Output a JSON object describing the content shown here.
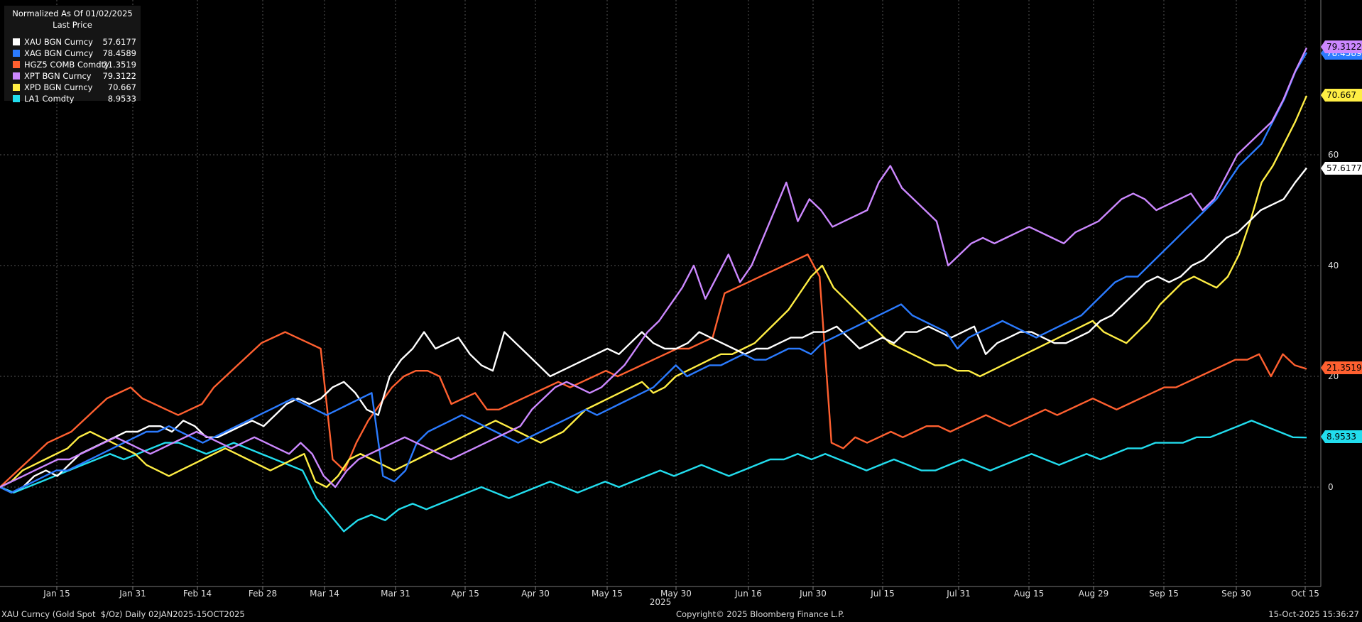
{
  "legend": {
    "header_line1": "Normalized As Of 01/02/2025",
    "header_line2": "Last Price",
    "items": [
      {
        "name": "XAU BGN Curncy",
        "value": "57.6177",
        "color": "#ffffff"
      },
      {
        "name": "XAG BGN Curncy",
        "value": "78.4589",
        "color": "#2b7bff"
      },
      {
        "name": "HGZ5 COMB Comdty",
        "value": "21.3519",
        "color": "#ff6030"
      },
      {
        "name": "XPT BGN Curncy",
        "value": "79.3122",
        "color": "#cc88ff"
      },
      {
        "name": "XPD BGN Curncy",
        "value": "70.667",
        "color": "#ffee44"
      },
      {
        "name": "LA1 Comdty",
        "value": "8.9533",
        "color": "#22ddee"
      }
    ]
  },
  "footer": {
    "left": "XAU Curncy (Gold Spot  $/Oz) Daily 02JAN2025-15OCT2025",
    "center": "Copyright© 2025 Bloomberg Finance L.P.",
    "right": "15-Oct-2025 15:36:27"
  },
  "chart_data": {
    "type": "line",
    "x_labels": [
      "Jan 15",
      "Jan 31",
      "Feb 14",
      "Feb 28",
      "Mar 14",
      "Mar 31",
      "Apr 15",
      "Apr 30",
      "May 15",
      "May 30",
      "Jun 16",
      "Jun 30",
      "Jul 15",
      "Jul 31",
      "Aug 15",
      "Aug 29",
      "Sep 15",
      "Sep 30",
      "Oct 15"
    ],
    "x_year_label": "2025",
    "y_ticks": [
      0,
      20,
      40,
      60
    ],
    "ylim": [
      -18,
      80
    ],
    "grid": true,
    "series": [
      {
        "name": "XAU BGN Curncy",
        "color": "#ffffff",
        "last": "57.6177",
        "values": [
          0,
          -1,
          0,
          2,
          3,
          2,
          4,
          6,
          7,
          8,
          9,
          10,
          10,
          11,
          11,
          10,
          12,
          11,
          9,
          9,
          10,
          11,
          12,
          11,
          13,
          15,
          16,
          15,
          16,
          18,
          19,
          17,
          14,
          13,
          20,
          23,
          25,
          28,
          25,
          26,
          27,
          24,
          22,
          21,
          28,
          26,
          24,
          22,
          20,
          21,
          22,
          23,
          24,
          25,
          24,
          26,
          28,
          26,
          25,
          25,
          26,
          28,
          27,
          26,
          25,
          24,
          25,
          25,
          26,
          27,
          27,
          28,
          28,
          29,
          27,
          25,
          26,
          27,
          26,
          28,
          28,
          29,
          28,
          27,
          28,
          29,
          24,
          26,
          27,
          28,
          28,
          27,
          26,
          26,
          27,
          28,
          30,
          31,
          33,
          35,
          37,
          38,
          37,
          38,
          40,
          41,
          43,
          45,
          46,
          48,
          50,
          51,
          52,
          55,
          57.6177
        ]
      },
      {
        "name": "XAG BGN Curncy",
        "color": "#2b7bff",
        "last": "78.4589",
        "values": [
          0,
          -1,
          0,
          1,
          2,
          3,
          3,
          4,
          5,
          6,
          7,
          8,
          9,
          10,
          10,
          11,
          10,
          9,
          8,
          9,
          10,
          11,
          12,
          13,
          14,
          15,
          16,
          15,
          14,
          13,
          14,
          15,
          16,
          17,
          2,
          1,
          3,
          8,
          10,
          11,
          12,
          13,
          12,
          11,
          10,
          9,
          8,
          9,
          10,
          11,
          12,
          13,
          14,
          13,
          14,
          15,
          16,
          17,
          18,
          20,
          22,
          20,
          21,
          22,
          22,
          23,
          24,
          23,
          23,
          24,
          25,
          25,
          24,
          26,
          27,
          28,
          29,
          30,
          31,
          32,
          33,
          31,
          30,
          29,
          28,
          25,
          27,
          28,
          29,
          30,
          29,
          28,
          27,
          28,
          29,
          30,
          31,
          33,
          35,
          37,
          38,
          38,
          40,
          42,
          44,
          46,
          48,
          50,
          52,
          55,
          58,
          60,
          62,
          66,
          70,
          75,
          78.4589
        ]
      },
      {
        "name": "HGZ5 COMB Comdty",
        "color": "#ff6030",
        "last": "21.3519",
        "values": [
          0,
          2,
          4,
          6,
          8,
          9,
          10,
          12,
          14,
          16,
          17,
          18,
          16,
          15,
          14,
          13,
          14,
          15,
          18,
          20,
          22,
          24,
          26,
          27,
          28,
          27,
          26,
          25,
          5,
          3,
          8,
          12,
          15,
          18,
          20,
          21,
          21,
          20,
          15,
          16,
          17,
          14,
          14,
          15,
          16,
          17,
          18,
          19,
          18,
          19,
          20,
          21,
          20,
          21,
          22,
          23,
          24,
          25,
          25,
          26,
          27,
          35,
          36,
          37,
          38,
          39,
          40,
          41,
          42,
          38,
          8,
          7,
          9,
          8,
          9,
          10,
          9,
          10,
          11,
          11,
          10,
          11,
          12,
          13,
          12,
          11,
          12,
          13,
          14,
          13,
          14,
          15,
          16,
          15,
          14,
          15,
          16,
          17,
          18,
          18,
          19,
          20,
          21,
          22,
          23,
          23,
          24,
          20,
          24,
          22,
          21.3519
        ]
      },
      {
        "name": "XPT BGN Curncy",
        "color": "#cc88ff",
        "last": "79.3122",
        "values": [
          0,
          1,
          2,
          3,
          4,
          5,
          5,
          6,
          7,
          8,
          9,
          8,
          7,
          6,
          7,
          8,
          9,
          10,
          9,
          8,
          7,
          8,
          9,
          8,
          7,
          6,
          8,
          6,
          2,
          0,
          3,
          5,
          6,
          7,
          8,
          9,
          8,
          7,
          6,
          5,
          6,
          7,
          8,
          9,
          10,
          11,
          14,
          16,
          18,
          19,
          18,
          17,
          18,
          20,
          22,
          25,
          28,
          30,
          33,
          36,
          40,
          34,
          38,
          42,
          37,
          40,
          45,
          50,
          55,
          48,
          52,
          50,
          47,
          48,
          49,
          50,
          55,
          58,
          54,
          52,
          50,
          48,
          40,
          42,
          44,
          45,
          44,
          45,
          46,
          47,
          46,
          45,
          44,
          46,
          47,
          48,
          50,
          52,
          53,
          52,
          50,
          51,
          52,
          53,
          50,
          52,
          56,
          60,
          62,
          64,
          66,
          70,
          75,
          79.3122
        ]
      },
      {
        "name": "XPD BGN Curncy",
        "color": "#ffee44",
        "last": "70.667",
        "values": [
          0,
          1,
          3,
          4,
          5,
          6,
          7,
          9,
          10,
          9,
          8,
          7,
          6,
          4,
          3,
          2,
          3,
          4,
          5,
          6,
          7,
          6,
          5,
          4,
          3,
          4,
          5,
          6,
          1,
          0,
          2,
          5,
          6,
          5,
          4,
          3,
          4,
          5,
          6,
          7,
          8,
          9,
          10,
          11,
          12,
          11,
          10,
          9,
          8,
          9,
          10,
          12,
          14,
          15,
          16,
          17,
          18,
          19,
          17,
          18,
          20,
          21,
          22,
          23,
          24,
          24,
          25,
          26,
          28,
          30,
          32,
          35,
          38,
          40,
          36,
          34,
          32,
          30,
          28,
          26,
          25,
          24,
          23,
          22,
          22,
          21,
          21,
          20,
          21,
          22,
          23,
          24,
          25,
          26,
          27,
          28,
          29,
          30,
          28,
          27,
          26,
          28,
          30,
          33,
          35,
          37,
          38,
          37,
          36,
          38,
          42,
          48,
          55,
          58,
          62,
          66,
          70.667
        ]
      },
      {
        "name": "LA1 Comdty",
        "color": "#22ddee",
        "last": "8.9533",
        "values": [
          0,
          -1,
          0,
          1,
          2,
          3,
          4,
          5,
          6,
          5,
          6,
          7,
          8,
          8,
          7,
          6,
          7,
          8,
          7,
          6,
          5,
          4,
          3,
          -2,
          -5,
          -8,
          -6,
          -5,
          -6,
          -4,
          -3,
          -4,
          -3,
          -2,
          -1,
          0,
          -1,
          -2,
          -1,
          0,
          1,
          0,
          -1,
          0,
          1,
          0,
          1,
          2,
          3,
          2,
          3,
          4,
          3,
          2,
          3,
          4,
          5,
          5,
          6,
          5,
          6,
          5,
          4,
          3,
          4,
          5,
          4,
          3,
          3,
          4,
          5,
          4,
          3,
          4,
          5,
          6,
          5,
          4,
          5,
          6,
          5,
          6,
          7,
          7,
          8,
          8,
          8,
          9,
          9,
          10,
          11,
          12,
          11,
          10,
          9,
          8.9533
        ]
      }
    ]
  }
}
